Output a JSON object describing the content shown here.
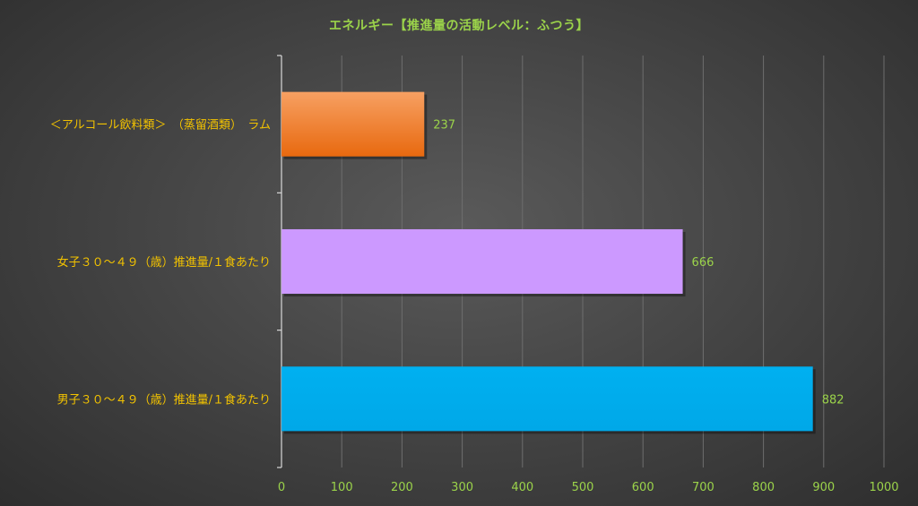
{
  "chart_data": {
    "type": "bar",
    "orientation": "horizontal",
    "title": "エネルギー【推進量の活動レベル：ふつう】",
    "xlabel": "",
    "ylabel": "",
    "xlim": [
      0,
      1000
    ],
    "x_ticks": [
      0,
      100,
      200,
      300,
      400,
      500,
      600,
      700,
      800,
      900,
      1000
    ],
    "grid": true,
    "categories": [
      "＜アルコール飲料類＞　（蒸留酒類）　ラム",
      "女子３０～４９（歳）推進量/１食あたり",
      "男子３０～４９（歳）推進量/１食あたり"
    ],
    "values": [
      237,
      666,
      882
    ],
    "value_labels": [
      "237",
      "666",
      "882"
    ],
    "colors": [
      "#f07a1e",
      "#cc99ff",
      "#00b0f0"
    ]
  }
}
